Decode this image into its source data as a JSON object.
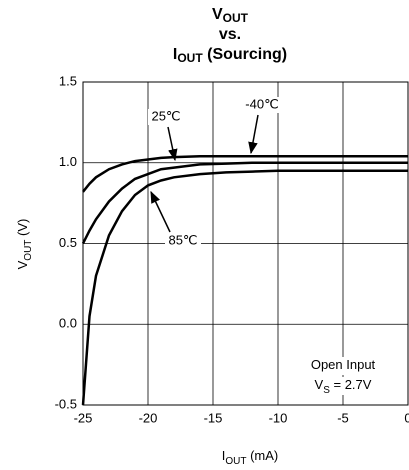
{
  "chart_data": {
    "type": "line",
    "title": [
      [
        "V",
        "OUT"
      ],
      [
        "vs."
      ],
      [
        "I",
        "OUT",
        " (Sourcing)"
      ]
    ],
    "x_label": [
      "I",
      "OUT",
      " (mA)"
    ],
    "y_label": [
      "V",
      "OUT",
      " (V)"
    ],
    "annotations": [
      [
        "Open Input"
      ],
      [
        "V",
        "S",
        " = 2.7V"
      ]
    ],
    "x": [
      -25,
      -24.5,
      -24,
      -23,
      -22,
      -21,
      -20,
      -19,
      -18,
      -16,
      -14,
      -12,
      -10,
      -5,
      0
    ],
    "series": [
      {
        "name": "-40℃",
        "color": "#000000",
        "values": [
          0.82,
          0.87,
          0.91,
          0.96,
          0.99,
          1.01,
          1.02,
          1.03,
          1.035,
          1.04,
          1.04,
          1.04,
          1.04,
          1.04,
          1.04
        ]
      },
      {
        "name": "25℃",
        "color": "#000000",
        "values": [
          0.5,
          0.58,
          0.65,
          0.76,
          0.84,
          0.9,
          0.93,
          0.96,
          0.97,
          0.99,
          0.995,
          1.0,
          1.0,
          1.0,
          1.0
        ]
      },
      {
        "name": "85℃",
        "color": "#000000",
        "values": [
          -0.5,
          0.05,
          0.3,
          0.55,
          0.7,
          0.8,
          0.86,
          0.89,
          0.91,
          0.93,
          0.94,
          0.945,
          0.95,
          0.95,
          0.95
        ]
      }
    ],
    "xlim": [
      -25,
      0
    ],
    "xticks": [
      -25,
      -20,
      -15,
      -10,
      -5,
      0
    ],
    "ylim": [
      -0.5,
      1.5
    ],
    "yticks": [
      1.5,
      {
        "value": 1.0,
        "label": "1.0"
      },
      0.5,
      {
        "value": 0.0,
        "label": "0.0"
      },
      -0.5
    ],
    "grid": true
  }
}
